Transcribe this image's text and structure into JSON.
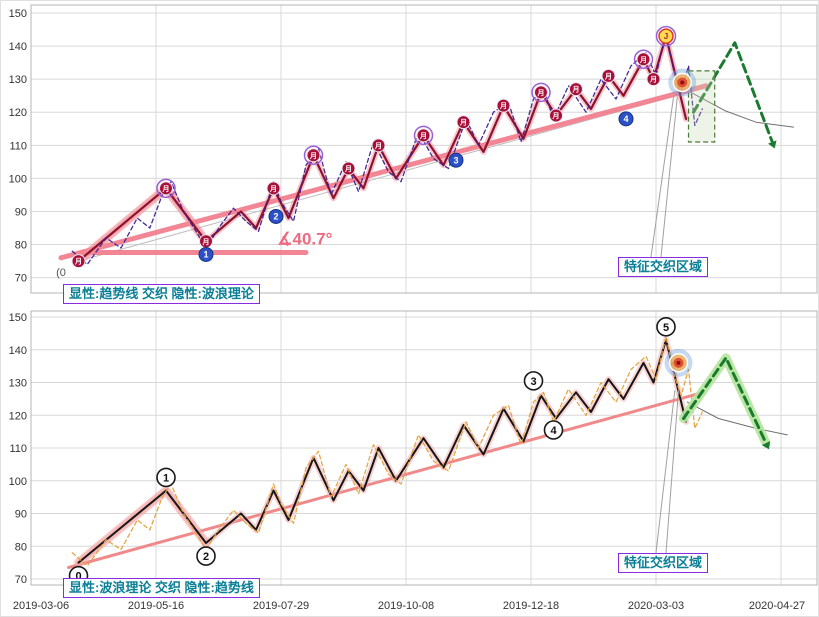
{
  "labels": {
    "top_legend": "显性:趋势线 交织 隐性:波浪理论",
    "bottom_legend": "显性:波浪理论 交织 隐性:趋势线",
    "region_top": "特征交织区域",
    "region_bottom": "特征交织区域"
  },
  "chart_data": {
    "type": "line",
    "title": "",
    "x_axis": {
      "labels": [
        "2019-03-06",
        "2019-05-16",
        "2019-07-29",
        "2019-10-08",
        "2019-12-18",
        "2020-03-03",
        "2020-04-27"
      ]
    },
    "y_ticks": [
      150,
      140,
      130,
      120,
      110,
      100,
      90,
      80,
      70
    ],
    "ylim": [
      70,
      150
    ],
    "grid": true,
    "wave_path": [
      [
        0.38,
        75
      ],
      [
        1.08,
        97
      ],
      [
        1.4,
        81
      ],
      [
        1.68,
        90
      ],
      [
        1.8,
        85
      ],
      [
        1.94,
        97
      ],
      [
        2.06,
        88
      ],
      [
        2.26,
        107
      ],
      [
        2.42,
        94
      ],
      [
        2.54,
        103
      ],
      [
        2.66,
        97
      ],
      [
        2.78,
        110
      ],
      [
        2.92,
        100
      ],
      [
        3.14,
        113
      ],
      [
        3.3,
        104
      ],
      [
        3.46,
        117
      ],
      [
        3.62,
        108
      ],
      [
        3.78,
        122
      ],
      [
        3.94,
        112
      ],
      [
        4.08,
        126
      ],
      [
        4.2,
        119
      ],
      [
        4.36,
        127
      ],
      [
        4.48,
        121
      ],
      [
        4.62,
        131
      ],
      [
        4.74,
        125
      ],
      [
        4.9,
        136
      ],
      [
        4.98,
        130
      ],
      [
        5.08,
        143
      ],
      [
        5.24,
        118
      ]
    ],
    "wave_head": [
      [
        0.38,
        75
      ],
      [
        1.08,
        97
      ],
      [
        1.4,
        81
      ]
    ],
    "price_path": [
      [
        0.33,
        78
      ],
      [
        0.45,
        74
      ],
      [
        0.6,
        82
      ],
      [
        0.72,
        79
      ],
      [
        0.85,
        88
      ],
      [
        0.95,
        85
      ],
      [
        1.05,
        95
      ],
      [
        1.12,
        99
      ],
      [
        1.22,
        90
      ],
      [
        1.32,
        84
      ],
      [
        1.4,
        79
      ],
      [
        1.52,
        86
      ],
      [
        1.62,
        91
      ],
      [
        1.72,
        87
      ],
      [
        1.82,
        84
      ],
      [
        1.94,
        99
      ],
      [
        2.0,
        93
      ],
      [
        2.1,
        87
      ],
      [
        2.2,
        104
      ],
      [
        2.3,
        109
      ],
      [
        2.4,
        95
      ],
      [
        2.52,
        105
      ],
      [
        2.62,
        96
      ],
      [
        2.74,
        111
      ],
      [
        2.86,
        102
      ],
      [
        2.96,
        99
      ],
      [
        3.1,
        114
      ],
      [
        3.22,
        106
      ],
      [
        3.34,
        103
      ],
      [
        3.48,
        118
      ],
      [
        3.58,
        110
      ],
      [
        3.7,
        120
      ],
      [
        3.82,
        123
      ],
      [
        3.92,
        111
      ],
      [
        4.02,
        124
      ],
      [
        4.1,
        127
      ],
      [
        4.18,
        118
      ],
      [
        4.3,
        128
      ],
      [
        4.44,
        120
      ],
      [
        4.56,
        130
      ],
      [
        4.68,
        124
      ],
      [
        4.8,
        134
      ],
      [
        4.92,
        138
      ],
      [
        5.0,
        131
      ],
      [
        5.08,
        144
      ],
      [
        5.14,
        133
      ],
      [
        5.2,
        126
      ],
      [
        5.26,
        134
      ],
      [
        5.31,
        116
      ],
      [
        5.37,
        121
      ]
    ],
    "panels": [
      {
        "name": "top",
        "plot": {
          "x0": 30,
          "dx": 125,
          "xEnd": 816,
          "yTop": 12,
          "scale": 3.308,
          "xticks": 7,
          "borderY": [
            4,
            292
          ]
        },
        "lines": [
          {
            "pts": [
              [
                0.38,
                75
              ],
              [
                5.4,
                127.5
              ]
            ],
            "color": "#bdbdbd",
            "w": 1
          },
          {
            "pts": [
              [
                0.24,
                76
              ],
              [
                5.4,
                128
              ]
            ],
            "color": "#f2808e",
            "w": 5,
            "op": 0.95
          },
          {
            "pts": [
              [
                0.4,
                77.6
              ],
              [
                2.2,
                77.6
              ]
            ],
            "color": "#f2808e",
            "w": 5,
            "op": 0.95
          },
          {
            "pts_ref": "wave_head",
            "color": "rgba(243,140,150,0.55)",
            "w": 9
          },
          {
            "pts_ref": "wave_path",
            "color": "#8b1230",
            "w": 2.2,
            "halo": {
              "color": "rgba(243,140,150,0.5)",
              "w": 6
            }
          },
          {
            "pts_ref": "price_path",
            "color": "#3c2090",
            "w": 1.3,
            "dash": "4 3",
            "op": 0.95
          },
          {
            "pts": [
              [
                4.96,
                76.3
              ],
              [
                5.14,
                124.6
              ]
            ],
            "color": "#a0a0a0",
            "w": 1
          },
          {
            "pts": [
              [
                5.04,
                76.3
              ],
              [
                5.17,
                124.6
              ]
            ],
            "color": "#a0a0a0",
            "w": 1
          },
          {
            "pts": [
              [
                5.28,
                126
              ],
              [
                5.55,
                120.5
              ],
              [
                5.8,
                117
              ],
              [
                6.1,
                115.5
              ]
            ],
            "color": "#707070",
            "w": 1
          },
          {
            "pts": [
              [
                5.3,
                120
              ],
              [
                5.63,
                141
              ],
              [
                5.93,
                111
              ]
            ],
            "color": "#1c7a30",
            "w": 3,
            "dash": "8 5",
            "arrow": true
          }
        ],
        "rects": [
          {
            "t0": 5.26,
            "v0": 132.5,
            "t1": 5.47,
            "v1": 111,
            "stroke": "#4a7a3a",
            "fill": "rgba(200,215,180,0.30)",
            "dash": "5 3"
          }
        ],
        "bullseye": {
          "t": 5.21,
          "v": 129
        },
        "marker_styles": {
          "red": {
            "r": 6.5,
            "fill": "#a8103a",
            "stroke": "#e8e8f4",
            "sw": 1,
            "tc": "#ffffff",
            "fs": 7,
            "text": "月"
          },
          "blue": {
            "r": 7,
            "fill": "#2b50c8",
            "stroke": "#16347e",
            "sw": 1,
            "tc": "#ffffff",
            "fs": 9
          },
          "yellow": {
            "r": 7,
            "fill": "#ffd94f",
            "stroke": "#d83a2a",
            "sw": 1.5,
            "tc": "#b02020",
            "fs": 8
          }
        },
        "markers": [
          {
            "s": "red",
            "t": 0.38,
            "v": 75
          },
          {
            "s": "red",
            "t": 1.08,
            "v": 97,
            "ring": true
          },
          {
            "s": "red",
            "t": 1.4,
            "v": 81
          },
          {
            "s": "red",
            "t": 1.94,
            "v": 97
          },
          {
            "s": "red",
            "t": 2.26,
            "v": 107,
            "ring": true
          },
          {
            "s": "red",
            "t": 2.54,
            "v": 103
          },
          {
            "s": "red",
            "t": 2.78,
            "v": 110
          },
          {
            "s": "red",
            "t": 3.14,
            "v": 113,
            "ring": true
          },
          {
            "s": "red",
            "t": 3.46,
            "v": 117
          },
          {
            "s": "red",
            "t": 3.78,
            "v": 122
          },
          {
            "s": "red",
            "t": 4.08,
            "v": 126,
            "ring": true
          },
          {
            "s": "red",
            "t": 4.2,
            "v": 119
          },
          {
            "s": "red",
            "t": 4.36,
            "v": 127
          },
          {
            "s": "red",
            "t": 4.62,
            "v": 131
          },
          {
            "s": "red",
            "t": 4.9,
            "v": 136,
            "ring": true
          },
          {
            "s": "red",
            "t": 4.98,
            "v": 130
          },
          {
            "s": "yellow",
            "t": 5.08,
            "v": 143,
            "text": "J",
            "ring": true
          },
          {
            "s": "blue",
            "t": 1.4,
            "v": 77,
            "text": "1"
          },
          {
            "s": "blue",
            "t": 1.96,
            "v": 88.5,
            "text": "2"
          },
          {
            "s": "blue",
            "t": 3.4,
            "v": 105.5,
            "text": "3"
          },
          {
            "s": "blue",
            "t": 4.76,
            "v": 118,
            "text": "4"
          }
        ],
        "texts": [
          {
            "t": 0.24,
            "v": 70.5,
            "str": "(0",
            "color": "#555555",
            "fs": 11,
            "anchor": "middle"
          },
          {
            "t": 1.97,
            "v": 80,
            "str": "∡40.7°",
            "color": "#ee6a80",
            "fs": 17,
            "bold": true,
            "anchor": "start"
          }
        ]
      },
      {
        "name": "bottom",
        "plot": {
          "x0": 30,
          "dx": 125,
          "xEnd": 816,
          "yTop": 316,
          "scale": 3.275,
          "xticks": 7,
          "borderY": [
            310,
            584
          ]
        },
        "lines": [
          {
            "pts": [
              [
                0.3,
                73.5
              ],
              [
                5.38,
                127
              ]
            ],
            "color": "#f08a8a",
            "w": 3
          },
          {
            "pts_ref": "wave_head",
            "color": "rgba(246,165,165,0.6)",
            "w": 9
          },
          {
            "pts_ref": "wave_path",
            "color": "#161616",
            "w": 2,
            "halo": {
              "color": "rgba(246,165,165,0.5)",
              "w": 6
            }
          },
          {
            "pts_ref": "price_path",
            "color": "#e2a23c",
            "w": 1.3,
            "dash": "4 3",
            "op": 0.95
          },
          {
            "pts": [
              [
                5.0,
                78
              ],
              [
                5.15,
                127.5
              ]
            ],
            "color": "#a0a0a0",
            "w": 1
          },
          {
            "pts": [
              [
                5.08,
                78
              ],
              [
                5.18,
                127.5
              ]
            ],
            "color": "#a0a0a0",
            "w": 1
          },
          {
            "pts": [
              [
                5.25,
                124
              ],
              [
                5.5,
                119
              ],
              [
                5.8,
                116
              ],
              [
                6.05,
                114
              ]
            ],
            "color": "#707070",
            "w": 1
          },
          {
            "pts": [
              [
                5.22,
                119
              ],
              [
                5.56,
                137.5
              ],
              [
                5.88,
                111.5
              ]
            ],
            "color": "#1c7a30",
            "w": 3,
            "dash": "8 5",
            "arrow": true,
            "halo": {
              "color": "#b2e49a",
              "w": 9,
              "op": 0.9
            }
          }
        ],
        "rects": [],
        "bullseye": {
          "t": 5.18,
          "v": 136
        },
        "marker_styles": {
          "num": {
            "r": 9,
            "fill": "#ffffff",
            "stroke": "#1a1a1a",
            "sw": 1.6,
            "tc": "#111111",
            "fs": 11
          }
        },
        "markers": [
          {
            "s": "num",
            "t": 0.38,
            "v": 71,
            "text": "0"
          },
          {
            "s": "num",
            "t": 1.08,
            "v": 101,
            "text": "1"
          },
          {
            "s": "num",
            "t": 1.4,
            "v": 77,
            "text": "2"
          },
          {
            "s": "num",
            "t": 4.02,
            "v": 130.5,
            "text": "3"
          },
          {
            "s": "num",
            "t": 4.18,
            "v": 115.5,
            "text": "4"
          },
          {
            "s": "num",
            "t": 5.08,
            "v": 147,
            "text": "5"
          }
        ],
        "texts": []
      }
    ]
  }
}
